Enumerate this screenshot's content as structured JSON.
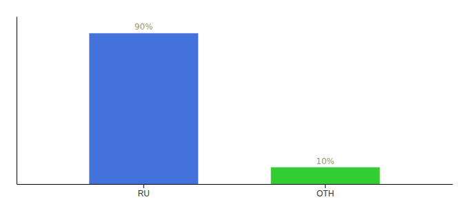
{
  "chart_data": {
    "type": "bar",
    "categories": [
      "RU",
      "OTH"
    ],
    "values": [
      90,
      10
    ],
    "value_labels": [
      "90%",
      "10%"
    ],
    "data_labels": true,
    "colors": [
      "#4472db",
      "#33cc33"
    ],
    "ylim": [
      0,
      100
    ],
    "tick_labels": "x"
  }
}
